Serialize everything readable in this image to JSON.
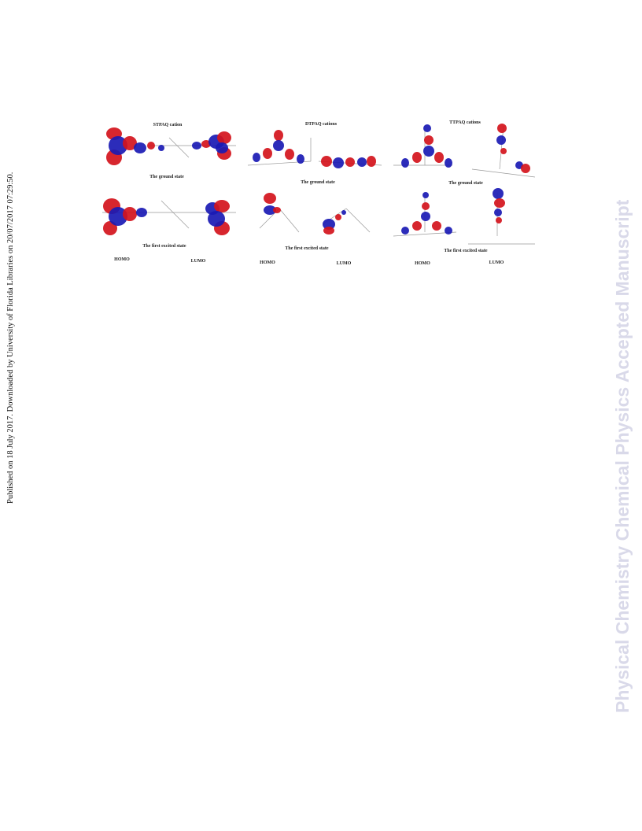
{
  "margin_note": "Published on 18 July 2017. Downloaded by University of Florida Libraries on 20/07/2017 07:29:50.",
  "watermark": "Physical Chemistry Chemical Physics Accepted Manuscript",
  "figure": {
    "panels": [
      {
        "title": "STPAQ cation",
        "ground_state": "The ground state",
        "excited_state": "The first excited state",
        "homo": "HOMO",
        "lumo": "LUMO"
      },
      {
        "title": "DTPAQ cations",
        "ground_state": "The ground state",
        "excited_state": "The first excited state",
        "homo": "HOMO",
        "lumo": "LUMO"
      },
      {
        "title": "TTPAQ cations",
        "ground_state": "The ground state",
        "excited_state": "The first excited state",
        "homo": "HOMO",
        "lumo": "LUMO"
      }
    ]
  }
}
